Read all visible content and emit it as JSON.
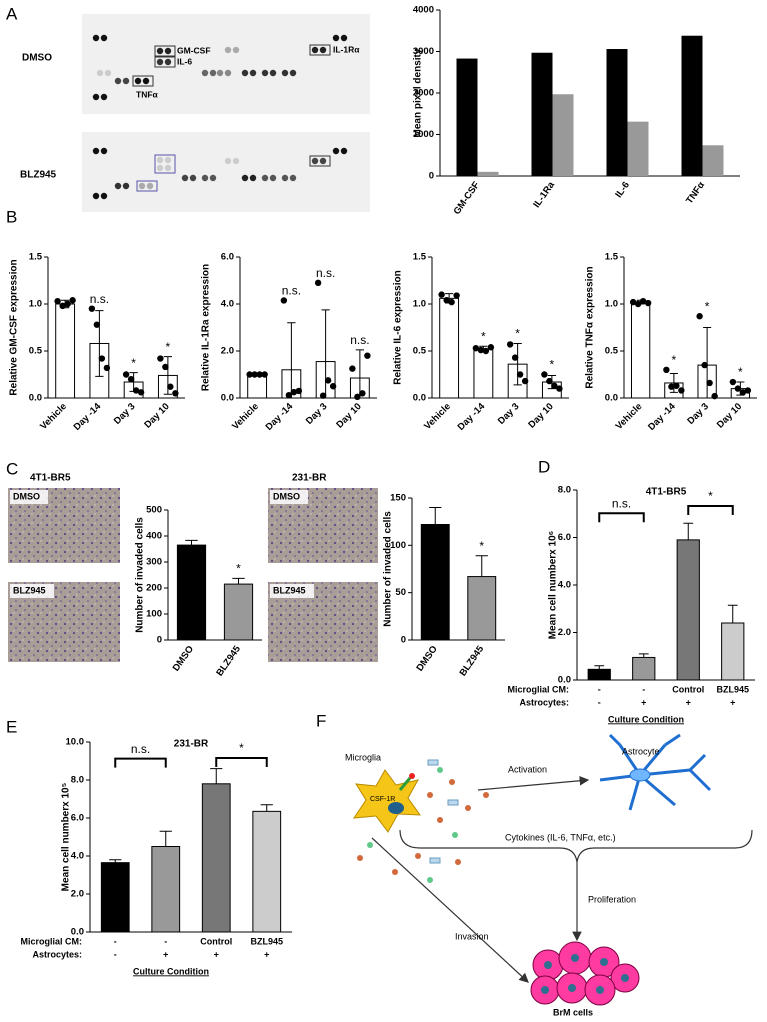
{
  "panel_labels": [
    "A",
    "B",
    "C",
    "D",
    "E",
    "F"
  ],
  "blot": {
    "rows": [
      "DMSO",
      "BLZ945"
    ],
    "labels": [
      "GM-CSF",
      "IL-6",
      "IL-1Rα",
      "TNFα"
    ]
  },
  "micrographs": {
    "lines": [
      "4T1-BR5",
      "231-BR"
    ],
    "treatments": [
      "DMSO",
      "BLZ945"
    ]
  },
  "chart_data": [
    {
      "type": "bar",
      "ylabel": "Mean pixel density",
      "categories": [
        "GM-CSF",
        "IL-1Ra",
        "IL-6",
        "TNFα"
      ],
      "series": [
        {
          "color": "#000000",
          "values": [
            2830,
            2970,
            3060,
            3380
          ]
        },
        {
          "color": "#999999",
          "values": [
            100,
            1970,
            1310,
            740
          ]
        }
      ],
      "ylim": [
        0,
        4000
      ],
      "yticks": [
        0,
        1000,
        2000,
        3000,
        4000
      ]
    },
    {
      "type": "bar",
      "ylabel": "Relative GM-CSF expression",
      "categories": [
        "Vehicle",
        "Day -14",
        "Day 3",
        "Day 10"
      ],
      "values": [
        1.0,
        0.58,
        0.17,
        0.24
      ],
      "errors": [
        0.04,
        0.35,
        0.1,
        0.2
      ],
      "error_direction": "both",
      "color": "#ffffff",
      "points": [
        [
          1.03,
          0.98,
          1.0,
          1.04
        ],
        [
          0.95,
          0.78,
          0.42,
          0.32
        ],
        [
          0.25,
          0.2,
          0.08,
          0.06
        ],
        [
          0.42,
          0.33,
          0.12,
          0.05
        ]
      ],
      "annotations": [
        null,
        "n.s.",
        "*",
        "*"
      ],
      "ylim": [
        0,
        1.5
      ],
      "yticks": [
        {
          "value": 0,
          "label": "0.0"
        },
        0.5,
        {
          "value": 1,
          "label": "1.0"
        },
        1.5
      ]
    },
    {
      "type": "bar",
      "ylabel": "Relative IL-1Ra expression",
      "categories": [
        "Vehicle",
        "Day -14",
        "Day 3",
        "Day 10"
      ],
      "values": [
        1.0,
        1.2,
        1.55,
        0.85
      ],
      "errors": [
        0.04,
        2.0,
        2.2,
        1.2
      ],
      "error_direction": "both",
      "color": "#ffffff",
      "points": [
        [
          1.0,
          1.0,
          1.0,
          1.0
        ],
        [
          4.15,
          0.12,
          0.25,
          0.3
        ],
        [
          4.9,
          0.1,
          0.75,
          0.5
        ],
        [
          1.25,
          0.05,
          0.2,
          1.8
        ]
      ],
      "annotations": [
        null,
        "n.s.",
        "n.s.",
        "n.s."
      ],
      "ylim": [
        0,
        6
      ],
      "yticks": [
        {
          "value": 0,
          "label": "0.0"
        },
        {
          "value": 2,
          "label": "2.0"
        },
        {
          "value": 4,
          "label": "4.0"
        },
        {
          "value": 6,
          "label": "6.0"
        }
      ]
    },
    {
      "type": "bar",
      "ylabel": "Relative IL-6 expression",
      "categories": [
        "Vehicle",
        "Day -14",
        "Day 3",
        "Day 10"
      ],
      "values": [
        1.06,
        0.52,
        0.36,
        0.17
      ],
      "errors": [
        0.05,
        0.03,
        0.22,
        0.07
      ],
      "error_direction": "both",
      "color": "#ffffff",
      "points": [
        [
          1.1,
          1.04,
          1.02,
          1.09
        ],
        [
          0.53,
          0.51,
          0.5,
          0.54
        ],
        [
          0.57,
          0.43,
          0.25,
          0.18
        ],
        [
          0.25,
          0.18,
          0.13,
          0.1
        ]
      ],
      "annotations": [
        null,
        "*",
        "*",
        "*"
      ],
      "ylim": [
        0,
        1.5
      ],
      "yticks": [
        {
          "value": 0,
          "label": "0.0"
        },
        0.5,
        {
          "value": 1,
          "label": "1.0"
        },
        1.5
      ]
    },
    {
      "type": "bar",
      "ylabel": "Relative TNFα expression",
      "categories": [
        "Vehicle",
        "Day -14",
        "Day 3",
        "Day 10"
      ],
      "values": [
        1.02,
        0.16,
        0.35,
        0.1
      ],
      "errors": [
        0.02,
        0.1,
        0.4,
        0.07
      ],
      "error_direction": "both",
      "color": "#ffffff",
      "points": [
        [
          1.02,
          1.0,
          1.03,
          1.01
        ],
        [
          0.3,
          0.12,
          0.13,
          0.08
        ],
        [
          0.87,
          0.35,
          0.16,
          0.02
        ],
        [
          0.17,
          0.1,
          0.06,
          0.08
        ]
      ],
      "annotations": [
        null,
        "*",
        "*",
        "*"
      ],
      "ylim": [
        0,
        1.5
      ],
      "yticks": [
        {
          "value": 0,
          "label": "0.0"
        },
        0.5,
        {
          "value": 1,
          "label": "1.0"
        },
        1.5
      ]
    },
    {
      "type": "bar",
      "ylabel": "Number of invaded cells",
      "categories": [
        "DMSO",
        "BLZ945"
      ],
      "values": [
        365,
        215
      ],
      "errors": [
        18,
        22
      ],
      "error_direction": "up",
      "colors": [
        "#000000",
        "#999999"
      ],
      "annotations": [
        null,
        "*"
      ],
      "ylim": [
        0,
        500
      ],
      "yticks": [
        0,
        100,
        200,
        300,
        400,
        500
      ]
    },
    {
      "type": "bar",
      "ylabel": "Number of invaded cells",
      "categories": [
        "DMSO",
        "BLZ945"
      ],
      "values": [
        122,
        67
      ],
      "errors": [
        18,
        22
      ],
      "error_direction": "up",
      "colors": [
        "#000000",
        "#999999"
      ],
      "annotations": [
        null,
        "*"
      ],
      "ylim": [
        0,
        150
      ],
      "yticks": [
        0,
        50,
        100,
        150
      ]
    },
    {
      "type": "bar",
      "title": "4T1-BR5",
      "ylabel": "Mean cell numberx 10⁶",
      "values": [
        0.45,
        0.95,
        5.9,
        2.4
      ],
      "errors": [
        0.15,
        0.15,
        0.7,
        0.75
      ],
      "error_direction": "up",
      "colors": [
        "#000000",
        "#999999",
        "#777777",
        "#cccccc"
      ],
      "brackets": [
        {
          "label": "n.s.",
          "pair": [
            0,
            1
          ]
        },
        {
          "label": "*",
          "pair": [
            2,
            3
          ]
        }
      ],
      "conditions": [
        {
          "label": "Microglial CM:",
          "values": [
            "-",
            "-",
            "Control",
            "BZL945"
          ]
        },
        {
          "label": "Astrocytes:",
          "values": [
            "-",
            "+",
            "+",
            "+"
          ]
        }
      ],
      "xlabel": "Culture Condition",
      "ylim": [
        0,
        8
      ],
      "yticks": [
        {
          "value": 0,
          "label": "0.0"
        },
        {
          "value": 2,
          "label": "2.0"
        },
        {
          "value": 4,
          "label": "4.0"
        },
        {
          "value": 6,
          "label": "6.0"
        },
        {
          "value": 8,
          "label": "8.0"
        }
      ]
    },
    {
      "type": "bar",
      "title": "231-BR",
      "ylabel": "Mean cell numberx 10⁵",
      "values": [
        3.65,
        4.5,
        7.8,
        6.35
      ],
      "errors": [
        0.15,
        0.8,
        0.8,
        0.35
      ],
      "error_direction": "up",
      "colors": [
        "#000000",
        "#999999",
        "#777777",
        "#cccccc"
      ],
      "brackets": [
        {
          "label": "n.s.",
          "pair": [
            0,
            1
          ]
        },
        {
          "label": "*",
          "pair": [
            2,
            3
          ]
        }
      ],
      "conditions": [
        {
          "label": "Microglial CM:",
          "values": [
            "-",
            "-",
            "Control",
            "BZL945"
          ]
        },
        {
          "label": "Astrocytes:",
          "values": [
            "-",
            "+",
            "+",
            "+"
          ]
        }
      ],
      "xlabel": "Culture Condition",
      "ylim": [
        0,
        10
      ],
      "yticks": [
        {
          "value": 0,
          "label": "0.0"
        },
        {
          "value": 2,
          "label": "2.0"
        },
        {
          "value": 4,
          "label": "4.0"
        },
        {
          "value": 6,
          "label": "6.0"
        },
        {
          "value": 8,
          "label": "8.0"
        },
        {
          "value": 10,
          "label": "10.0"
        }
      ]
    }
  ],
  "diagram": {
    "microglia": "Microglia",
    "receptor": "CSF-1R",
    "activation": "Activation",
    "astrocyte": "Astrocyte",
    "cytokines": "Cytokines (IL-6, TNFα, etc.)",
    "proliferation": "Proliferation",
    "invasion": "Invasion",
    "target": "BrM cells"
  }
}
